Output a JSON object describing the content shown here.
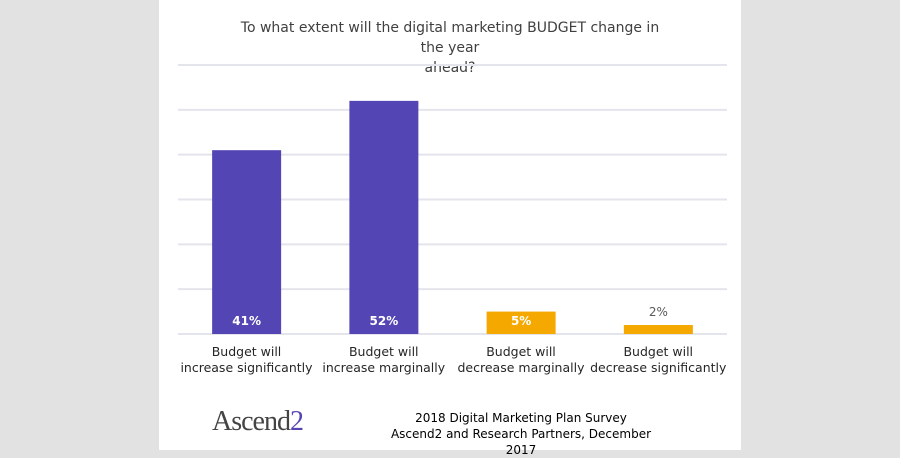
{
  "chart_data": {
    "type": "bar",
    "title": "To what extent will the digital marketing BUDGET change in the year ahead?",
    "xlabel": "",
    "ylabel": "",
    "ylim": [
      0,
      60
    ],
    "y_gridlines": [
      0,
      10,
      20,
      30,
      40,
      50,
      60
    ],
    "grid": true,
    "y_tick_labels_visible": false,
    "categories": [
      "Budget will increase significantly",
      "Budget will increase marginally",
      "Budget will decrease marginally",
      "Budget will decrease significantly"
    ],
    "category_lines": [
      [
        "Budget will",
        "increase significantly"
      ],
      [
        "Budget will",
        "increase marginally"
      ],
      [
        "Budget will",
        "decrease marginally"
      ],
      [
        "Budget will",
        "decrease significantly"
      ]
    ],
    "values": [
      41,
      52,
      5,
      2
    ],
    "data_labels": [
      "41%",
      "52%",
      "5%",
      "2%"
    ],
    "bar_colors": [
      "#5346b4",
      "#5346b4",
      "#f5a800",
      "#f5a800"
    ],
    "label_inside": [
      true,
      true,
      true,
      false
    ]
  },
  "title_lines": [
    "To what extent will the digital marketing BUDGET change in the year",
    "ahead?"
  ],
  "footer": {
    "logo_text": "Ascend",
    "logo_accent": "2",
    "source_line1": "2018 Digital Marketing Plan Survey",
    "source_line2": "Ascend2 and Research Partners, December 2017"
  },
  "colors": {
    "background": "#e2e2e2",
    "panel": "#ffffff",
    "gridline": "#e4e4ec",
    "increase": "#5346b4",
    "decrease": "#f5a800"
  }
}
